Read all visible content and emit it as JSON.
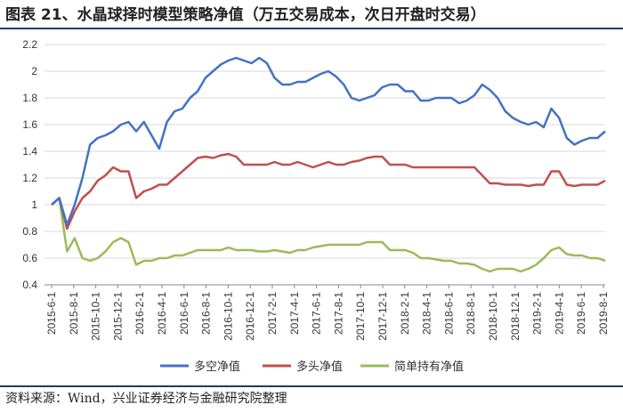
{
  "title": "图表 21、水晶球择时模型策略净值（万五交易成本，次日开盘时交易）",
  "source": "资料来源：Wind，兴业证券经济与金融研究院整理",
  "chart_data": {
    "type": "line",
    "ylim": [
      0.4,
      2.2
    ],
    "yticks": [
      "0.4",
      "0.6",
      "0.8",
      "1",
      "1.2",
      "1.4",
      "1.6",
      "1.8",
      "2",
      "2.2"
    ],
    "xticks": [
      "2015-6-1",
      "2015-8-1",
      "2015-10-1",
      "2015-12-1",
      "2016-2-1",
      "2016-4-1",
      "2016-6-1",
      "2016-8-1",
      "2016-10-1",
      "2016-12-1",
      "2017-2-1",
      "2017-4-1",
      "2017-6-1",
      "2017-8-1",
      "2017-10-1",
      "2017-12-1",
      "2018-2-1",
      "2018-4-1",
      "2018-6-1",
      "2018-8-1",
      "2018-10-1",
      "2018-12-1",
      "2019-2-1",
      "2019-4-1",
      "2019-6-1",
      "2019-8-1"
    ],
    "legend_position": "bottom",
    "series": [
      {
        "name": "多空净值",
        "color": "#4472c4",
        "values": [
          1.0,
          1.05,
          0.85,
          1.0,
          1.2,
          1.45,
          1.5,
          1.52,
          1.55,
          1.6,
          1.62,
          1.55,
          1.62,
          1.52,
          1.42,
          1.62,
          1.7,
          1.72,
          1.8,
          1.85,
          1.95,
          2.0,
          2.05,
          2.08,
          2.1,
          2.08,
          2.06,
          2.1,
          2.06,
          1.95,
          1.9,
          1.9,
          1.92,
          1.92,
          1.95,
          1.98,
          2.0,
          1.96,
          1.9,
          1.8,
          1.78,
          1.8,
          1.82,
          1.88,
          1.9,
          1.9,
          1.85,
          1.85,
          1.78,
          1.78,
          1.8,
          1.8,
          1.8,
          1.76,
          1.78,
          1.82,
          1.9,
          1.86,
          1.8,
          1.7,
          1.65,
          1.62,
          1.6,
          1.62,
          1.58,
          1.72,
          1.65,
          1.5,
          1.45,
          1.48,
          1.5,
          1.5,
          1.55
        ]
      },
      {
        "name": "多头净值",
        "color": "#c0504d",
        "values": [
          1.0,
          1.05,
          0.82,
          0.95,
          1.05,
          1.1,
          1.18,
          1.22,
          1.28,
          1.25,
          1.25,
          1.05,
          1.1,
          1.12,
          1.15,
          1.15,
          1.2,
          1.25,
          1.3,
          1.35,
          1.36,
          1.35,
          1.37,
          1.38,
          1.36,
          1.3,
          1.3,
          1.3,
          1.3,
          1.32,
          1.3,
          1.3,
          1.32,
          1.3,
          1.28,
          1.3,
          1.32,
          1.3,
          1.3,
          1.32,
          1.33,
          1.35,
          1.36,
          1.36,
          1.3,
          1.3,
          1.3,
          1.28,
          1.28,
          1.28,
          1.28,
          1.28,
          1.28,
          1.28,
          1.28,
          1.28,
          1.22,
          1.16,
          1.16,
          1.15,
          1.15,
          1.15,
          1.14,
          1.15,
          1.15,
          1.25,
          1.25,
          1.15,
          1.14,
          1.15,
          1.15,
          1.15,
          1.18
        ]
      },
      {
        "name": "简单持有净值",
        "color": "#9bbb59",
        "values": [
          1.0,
          1.05,
          0.65,
          0.75,
          0.6,
          0.58,
          0.6,
          0.65,
          0.72,
          0.75,
          0.72,
          0.55,
          0.58,
          0.58,
          0.6,
          0.6,
          0.62,
          0.62,
          0.64,
          0.66,
          0.66,
          0.66,
          0.66,
          0.68,
          0.66,
          0.66,
          0.66,
          0.65,
          0.65,
          0.66,
          0.65,
          0.64,
          0.66,
          0.66,
          0.68,
          0.69,
          0.7,
          0.7,
          0.7,
          0.7,
          0.7,
          0.72,
          0.72,
          0.72,
          0.66,
          0.66,
          0.66,
          0.64,
          0.6,
          0.6,
          0.59,
          0.58,
          0.58,
          0.56,
          0.56,
          0.55,
          0.52,
          0.5,
          0.52,
          0.52,
          0.52,
          0.5,
          0.52,
          0.55,
          0.6,
          0.66,
          0.68,
          0.63,
          0.62,
          0.62,
          0.6,
          0.6,
          0.58
        ]
      }
    ]
  }
}
